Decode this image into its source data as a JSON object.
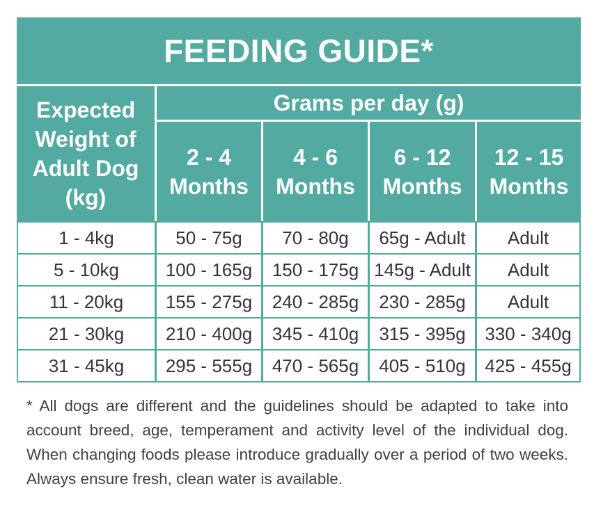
{
  "title": "FEEDING GUIDE*",
  "header": {
    "weight_label": "Expected Weight of Adult Dog (kg)",
    "grams_label": "Grams per day (g)",
    "age_columns": [
      {
        "range": "2 - 4",
        "unit": "Months"
      },
      {
        "range": "4 - 6",
        "unit": "Months"
      },
      {
        "range": "6 - 12",
        "unit": "Months"
      },
      {
        "range": "12 - 15",
        "unit": "Months"
      }
    ]
  },
  "rows": [
    {
      "weight": "1 - 4kg",
      "grams_per_day": [
        "50 - 75g",
        "70 - 80g",
        "65g - Adult",
        "Adult"
      ]
    },
    {
      "weight": "5 - 10kg",
      "grams_per_day": [
        "100 - 165g",
        "150 - 175g",
        "145g - Adult",
        "Adult"
      ]
    },
    {
      "weight": "11 - 20kg",
      "grams_per_day": [
        "155 - 275g",
        "240 - 285g",
        "230 - 285g",
        "Adult"
      ]
    },
    {
      "weight": "21 - 30kg",
      "grams_per_day": [
        "210 - 400g",
        "345 - 410g",
        "315 - 395g",
        "330 - 340g"
      ]
    },
    {
      "weight": "31 - 45kg",
      "grams_per_day": [
        "295 - 555g",
        "470 - 565g",
        "405 - 510g",
        "425 - 455g"
      ]
    }
  ],
  "footnote": "* All dogs are different and the guidelines should be adapted to take into account breed, age, temperament and activity level of the individual dog. When changing foods please introduce gradually over a period of two weeks. Always ensure fresh, clean water is available.",
  "colors": {
    "teal": "#52aaa0",
    "text": "#353535",
    "background": "#ffffff"
  }
}
